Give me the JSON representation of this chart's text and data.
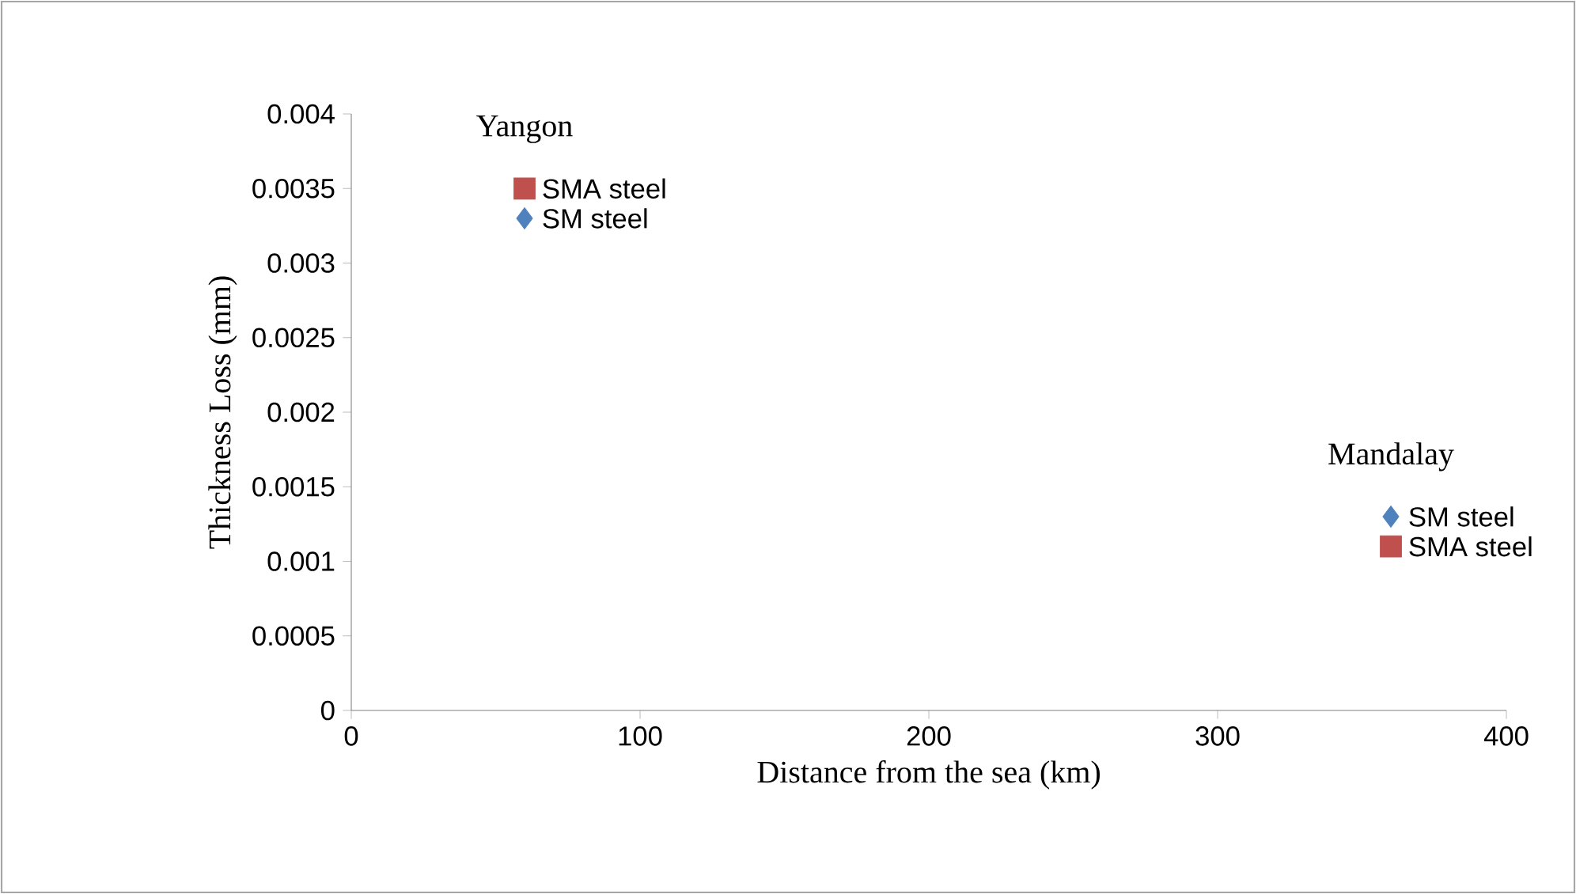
{
  "chart_data": {
    "type": "scatter",
    "xlabel": "Distance from the sea (km)",
    "ylabel": "Thickness Loss (mm)",
    "series": [
      {
        "name": "SM steel",
        "color": "#4f81bd",
        "marker": "diamond",
        "values": [
          0.0033,
          0.0013
        ]
      },
      {
        "name": "SMA steel",
        "color": "#c0504d",
        "marker": "square",
        "values": [
          0.0035,
          0.0011
        ]
      }
    ],
    "x": [
      60,
      360
    ],
    "annotations": [
      "Yangon",
      "Mandalay"
    ],
    "xlim": [
      0,
      400
    ],
    "xticks": [
      0,
      100,
      200,
      300,
      400
    ],
    "ylim": [
      0,
      0.004
    ],
    "yticks": [
      0,
      0.0005,
      0.001,
      0.0015,
      0.002,
      0.0025,
      0.003,
      0.0035,
      0.004
    ],
    "grid": false
  }
}
